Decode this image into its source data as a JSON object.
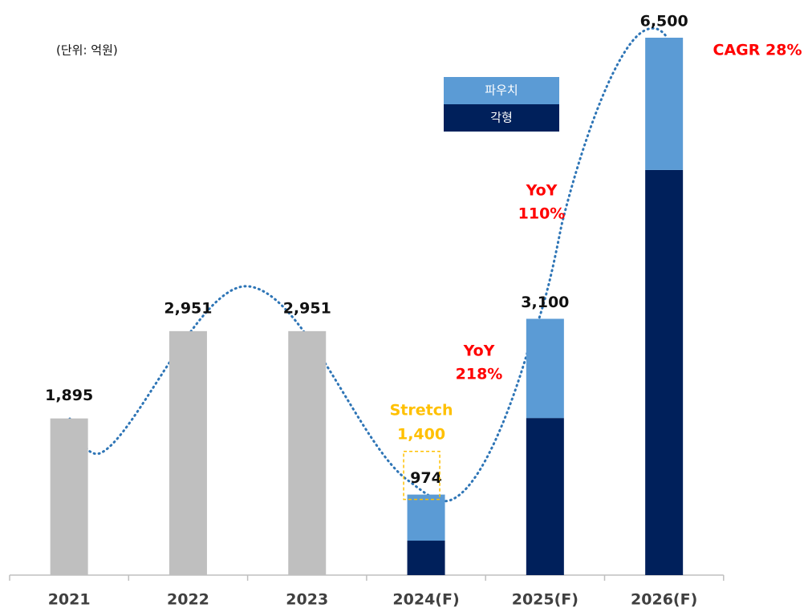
{
  "chart_data": {
    "type": "stacked_bar",
    "unit_note": "(단위: 억원)",
    "categories": [
      "2021",
      "2022",
      "2023",
      "2024(F)",
      "2025(F)",
      "2026(F)"
    ],
    "series": [
      {
        "color": "#bfbfbf",
        "values": [
          1895,
          2951,
          2951,
          null,
          null,
          null
        ],
        "value_labels": [
          "1,895",
          "2,951",
          "2,951",
          null,
          null,
          null
        ]
      },
      {
        "name": "각형",
        "color": "#00205b",
        "values": [
          null,
          null,
          null,
          417,
          1900,
          4900
        ]
      },
      {
        "name": "파우치",
        "color": "#5b9bd5",
        "values": [
          null,
          null,
          null,
          557,
          1200,
          1600
        ]
      }
    ],
    "totals": [
      null,
      null,
      null,
      974,
      3100,
      6500
    ],
    "total_labels": [
      null,
      null,
      null,
      "974",
      "3,100",
      "6,500"
    ],
    "ylim": [
      0,
      6500
    ],
    "stretch": {
      "text": "Stretch",
      "value": 1400,
      "label": "1,400",
      "category": 3
    },
    "annotations": [
      {
        "line1": "YoY",
        "line2": "218%"
      },
      {
        "line1": "YoY",
        "line2": "110%"
      },
      {
        "line1": "CAGR 28%"
      }
    ]
  }
}
